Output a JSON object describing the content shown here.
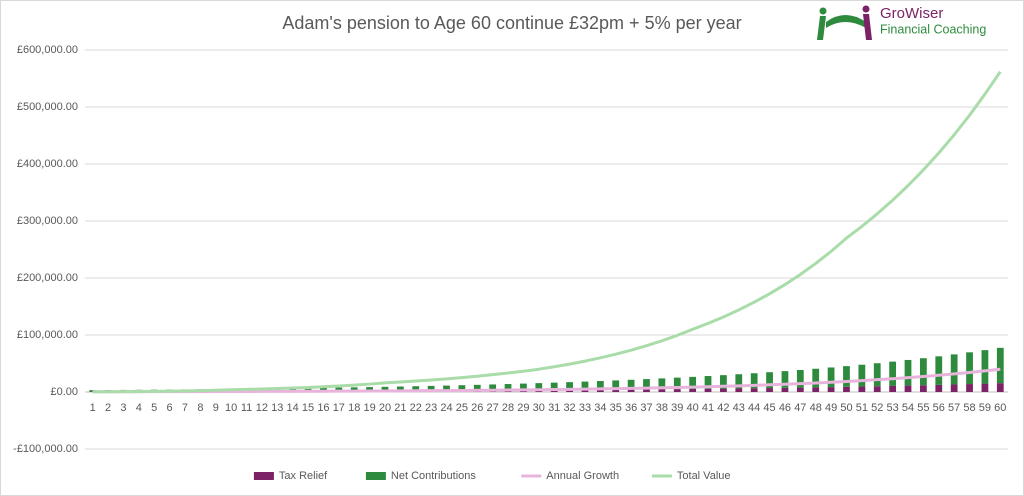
{
  "chart_data": {
    "type": "bar",
    "stacked": true,
    "title": "Adam's pension to Age 60 continue £32pm + 5% per year",
    "logo": {
      "name": "GroWiser",
      "tagline": "Financial Coaching"
    },
    "categories": [
      1,
      2,
      3,
      4,
      5,
      6,
      7,
      8,
      9,
      10,
      11,
      12,
      13,
      14,
      15,
      16,
      17,
      18,
      19,
      20,
      21,
      22,
      23,
      24,
      25,
      26,
      27,
      28,
      29,
      30,
      31,
      32,
      33,
      34,
      35,
      36,
      37,
      38,
      39,
      40,
      41,
      42,
      43,
      44,
      45,
      46,
      47,
      48,
      49,
      50,
      51,
      52,
      53,
      54,
      55,
      56,
      57,
      58,
      59,
      60
    ],
    "ylim": [
      -100000,
      600000
    ],
    "yticks": [
      {
        "value": -100000,
        "label": "-£100,000.00"
      },
      {
        "value": 0,
        "label": "£0.00"
      },
      {
        "value": 100000,
        "label": "£100,000.00"
      },
      {
        "value": 200000,
        "label": "£200,000.00"
      },
      {
        "value": 300000,
        "label": "£300,000.00"
      },
      {
        "value": 400000,
        "label": "£400,000.00"
      },
      {
        "value": 500000,
        "label": "£500,000.00"
      },
      {
        "value": 600000,
        "label": "£600,000.00"
      }
    ],
    "grid": true,
    "legend": "bottom",
    "series": [
      {
        "name": "Tax Relief",
        "type": "bar",
        "color": "#7b2366",
        "values": [
          658,
          695,
          733,
          773,
          816,
          860,
          908,
          958,
          1010,
          1066,
          1125,
          1186,
          1252,
          1321,
          1393,
          1470,
          1551,
          1636,
          1726,
          1821,
          1921,
          2027,
          2138,
          2256,
          2380,
          2511,
          2649,
          2794,
          2948,
          3110,
          3281,
          3462,
          3652,
          3853,
          4065,
          4288,
          4524,
          4773,
          5035,
          5312,
          5605,
          5913,
          6238,
          6581,
          6943,
          7325,
          7728,
          8153,
          8601,
          9074,
          9573,
          10100,
          10655,
          11241,
          11860,
          12512,
          13200,
          13926,
          14692,
          15500
        ]
      },
      {
        "name": "Net Contributions",
        "type": "bar",
        "color": "#2e8b3e",
        "values": [
          2633,
          2778,
          2931,
          3092,
          3262,
          3441,
          3631,
          3830,
          4041,
          4263,
          4498,
          4745,
          5006,
          5282,
          5572,
          5879,
          6202,
          6543,
          6903,
          7283,
          7683,
          8106,
          8552,
          9022,
          9518,
          10042,
          10594,
          11177,
          11791,
          12440,
          13124,
          13846,
          14608,
          15411,
          16259,
          17153,
          18096,
          19091,
          20141,
          21249,
          22418,
          23651,
          24952,
          26324,
          27772,
          29300,
          30911,
          32611,
          34405,
          36297,
          38293,
          40399,
          42621,
          44965,
          47438,
          50047,
          52800,
          55704,
          58768,
          62000
        ]
      },
      {
        "name": "Annual Growth",
        "type": "line",
        "color": "#e8b4dc",
        "values": [
          427,
          461,
          498,
          537,
          580,
          627,
          677,
          731,
          790,
          853,
          921,
          995,
          1074,
          1160,
          1253,
          1353,
          1462,
          1579,
          1705,
          1841,
          1989,
          2148,
          2320,
          2505,
          2705,
          2922,
          3156,
          3408,
          3681,
          3975,
          4293,
          4637,
          5007,
          5408,
          5841,
          6308,
          6813,
          7358,
          7946,
          8582,
          9269,
          10010,
          10811,
          11676,
          12610,
          13619,
          14708,
          15885,
          17155,
          18528,
          20010,
          21611,
          23340,
          25207,
          27223,
          29401,
          31753,
          34294,
          37037,
          40000
        ]
      },
      {
        "name": "Total Value",
        "type": "line",
        "color": "#a9dca9",
        "values": [
          400,
          517,
          667,
          861,
          1112,
          1436,
          1855,
          2396,
          3094,
          4000,
          4595,
          5278,
          6063,
          6964,
          8000,
          9190,
          10556,
          12126,
          13929,
          16000,
          17535,
          19216,
          21059,
          23079,
          25298,
          27724,
          30383,
          33296,
          36490,
          40000,
          44256,
          48965,
          54175,
          59939,
          66316,
          73373,
          81180,
          89818,
          99374,
          110000,
          120330,
          131630,
          143990,
          157510,
          172300,
          188480,
          206180,
          225540,
          246720,
          270000,
          290550,
          312660,
          336460,
          362070,
          389630,
          419280,
          451190,
          485530,
          522480,
          562000
        ]
      }
    ]
  }
}
